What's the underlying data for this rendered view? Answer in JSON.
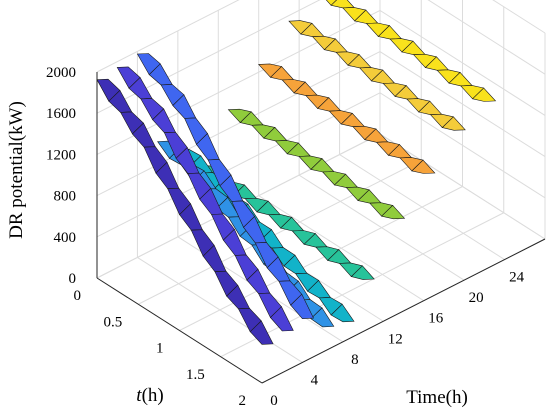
{
  "chart_data": {
    "type": "surface3d",
    "title": "",
    "zlabel": "DR potential(kW)",
    "tlabel_italic": "t",
    "tlabel_unit": "(h)",
    "xlabel": "Time(h)",
    "z_ticks": [
      "0",
      "400",
      "800",
      "1200",
      "1600",
      "2000"
    ],
    "t_ticks": [
      "0",
      "0.5",
      "1",
      "1.5",
      "2"
    ],
    "time_ticks": [
      "0",
      "4",
      "8",
      "12",
      "16",
      "20",
      "24"
    ],
    "zlim": [
      0,
      2000
    ],
    "tlim": [
      0,
      2
    ],
    "time_lim": [
      0,
      28
    ],
    "grid": true,
    "ribbons": [
      {
        "time": 0,
        "color": "#3d2fb5",
        "t": [
          0,
          0.5,
          1,
          1.5,
          2
        ],
        "z": [
          1900,
          1600,
          1150,
          700,
          350
        ]
      },
      {
        "time": 2,
        "color": "#4b3fd6",
        "t": [
          0,
          0.5,
          1,
          1.5,
          2
        ],
        "z": [
          1920,
          1640,
          1200,
          760,
          380
        ]
      },
      {
        "time": 4,
        "color": "#3f66f0",
        "t": [
          0,
          0.5,
          1,
          1.5,
          2
        ],
        "z": [
          1950,
          1680,
          1230,
          780,
          400
        ]
      },
      {
        "time": 6,
        "color": "#2f92e6",
        "t": [
          0,
          0.5,
          1,
          1.5,
          2
        ],
        "z": [
          1000,
          860,
          640,
          420,
          220
        ]
      },
      {
        "time": 8,
        "color": "#12b3c9",
        "t": [
          0,
          0.5,
          1,
          1.5,
          2
        ],
        "z": [
          820,
          680,
          500,
          320,
          170
        ]
      },
      {
        "time": 10,
        "color": "#27c39a",
        "t": [
          0,
          0.5,
          1,
          1.5,
          2
        ],
        "z": [
          560,
          540,
          520,
          500,
          480
        ]
      },
      {
        "time": 13,
        "color": "#90cc3c",
        "t": [
          0,
          0.5,
          1,
          1.5,
          2
        ],
        "z": [
          960,
          950,
          940,
          930,
          920
        ]
      },
      {
        "time": 16,
        "color": "#f6a33a",
        "t": [
          0,
          0.5,
          1,
          1.5,
          2
        ],
        "z": [
          1250,
          1240,
          1230,
          1220,
          1210
        ]
      },
      {
        "time": 19,
        "color": "#f4cc3a",
        "t": [
          0,
          0.5,
          1,
          1.5,
          2
        ],
        "z": [
          1520,
          1510,
          1500,
          1490,
          1480
        ]
      },
      {
        "time": 22,
        "color": "#f9e21c",
        "t": [
          0,
          0.5,
          1,
          1.5,
          2
        ],
        "z": [
          1650,
          1640,
          1630,
          1620,
          1610
        ]
      }
    ]
  }
}
